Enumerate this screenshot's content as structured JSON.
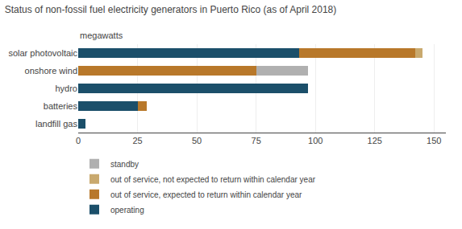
{
  "chart_data": {
    "type": "bar",
    "orientation": "horizontal",
    "stacked": true,
    "title": "Status of non-fossil fuel electricity generators in Puerto Rico (as of April 2018)",
    "subtitle": "megawatts",
    "categories": [
      "solar photovoltaic",
      "onshore wind",
      "hydro",
      "batteries",
      "landfill gas"
    ],
    "series": [
      {
        "name": "operating",
        "color": "#1b4f6a",
        "values": [
          93,
          0,
          97,
          25,
          3
        ]
      },
      {
        "name": "out of service, expected to return within calendar year",
        "color": "#b8782a",
        "values": [
          49,
          75,
          0,
          4,
          0
        ]
      },
      {
        "name": "out of service, not expected to return within calendar year",
        "color": "#c9a96e",
        "values": [
          3,
          0,
          0,
          0,
          0
        ]
      },
      {
        "name": "standby",
        "color": "#b0b0b0",
        "values": [
          0,
          22,
          0,
          0,
          0
        ]
      }
    ],
    "xlim": [
      0,
      155
    ],
    "xticks": [
      0,
      25,
      50,
      75,
      100,
      125,
      150
    ],
    "grid": true,
    "legend": "bottom"
  }
}
